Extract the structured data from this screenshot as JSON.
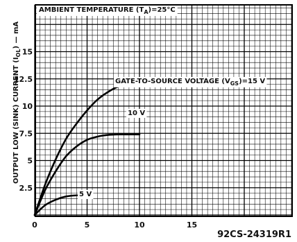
{
  "chart_data": {
    "type": "line",
    "title": "AMBIENT TEMPERATURE (T",
    "title_sub": "A",
    "title_end": ")=25°C",
    "ylabel": "OUTPUT LOW (SINK) CURRENT (I",
    "ylabel_sub": "OL",
    "ylabel_end": ") — mA",
    "xlim": [
      0,
      25
    ],
    "ylim": [
      0,
      22
    ],
    "x_ticks": [
      {
        "value": 0,
        "label": "0"
      },
      {
        "value": 5,
        "label": "5"
      },
      {
        "value": 10,
        "label": "10"
      },
      {
        "value": 15,
        "label": "15"
      }
    ],
    "y_ticks": [
      {
        "value": 2.5,
        "label": "2.5"
      },
      {
        "value": 5,
        "label": "5"
      },
      {
        "value": 7.5,
        "label": "7.5"
      },
      {
        "value": 10,
        "label": "10"
      },
      {
        "value": 12.5,
        "label": "12.5"
      },
      {
        "value": 15,
        "label": "15"
      }
    ],
    "grid": true,
    "series": [
      {
        "name": "GATE-TO-SOURCE VOLTAGE (V",
        "name_sub": "GS",
        "name_end": ")=15 V",
        "x": [
          0,
          1,
          2,
          3,
          4,
          5,
          6,
          7,
          8,
          9,
          10,
          11,
          12,
          13,
          14,
          15
        ],
        "y": [
          0,
          2.8,
          5.1,
          7.0,
          8.4,
          9.6,
          10.6,
          11.3,
          11.8,
          12.0,
          12.1,
          12.2,
          12.2,
          12.2,
          12.2,
          12.2
        ]
      },
      {
        "name": "10 V",
        "x": [
          0,
          1,
          2,
          3,
          4,
          5,
          6,
          7,
          8,
          9,
          10
        ],
        "y": [
          0,
          2.3,
          4.0,
          5.4,
          6.3,
          6.9,
          7.2,
          7.35,
          7.4,
          7.4,
          7.4
        ]
      },
      {
        "name": "5 V",
        "x": [
          0,
          1,
          2,
          3,
          4,
          5
        ],
        "y": [
          0,
          0.9,
          1.4,
          1.7,
          1.8,
          1.8
        ]
      }
    ]
  },
  "figure_code": "92CS-24319R1"
}
